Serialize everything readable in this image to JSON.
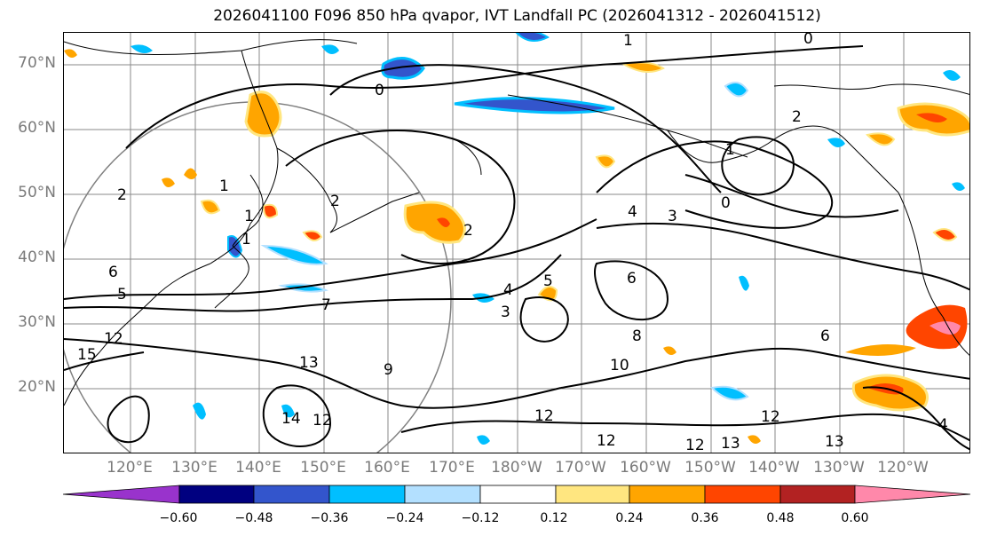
{
  "title": "2026041100 F096 850 hPa qvapor, IVT Landfall PC (2026041312 - 2026041512)",
  "lat_labels": [
    "70°N",
    "60°N",
    "50°N",
    "40°N",
    "30°N",
    "20°N"
  ],
  "lon_labels": [
    "120°E",
    "130°E",
    "140°E",
    "150°E",
    "160°E",
    "170°E",
    "180°W",
    "170°W",
    "160°W",
    "150°W",
    "140°W",
    "130°W",
    "120°W"
  ],
  "contour_labels": [
    "1",
    "0",
    "0",
    "2",
    "1",
    "0",
    "2",
    "4",
    "3",
    "1",
    "2",
    "1",
    "2",
    "1",
    "5",
    "4",
    "3",
    "5",
    "6",
    "6",
    "7",
    "8",
    "9",
    "10",
    "12",
    "13",
    "12",
    "12",
    "12",
    "13",
    "13",
    "12",
    "14",
    "4",
    "6",
    "15",
    "12"
  ],
  "colorbar": {
    "ticks": [
      "−0.60",
      "−0.48",
      "−0.36",
      "−0.24",
      "−0.12",
      "0.12",
      "0.24",
      "0.36",
      "0.48",
      "0.60"
    ],
    "colors": [
      "#9933cc",
      "#000080",
      "#3355cc",
      "#00bfff",
      "#b3e0ff",
      "#ffffff",
      "#ffe680",
      "#ffa500",
      "#ff4500",
      "#b22222",
      "#ff88aa"
    ]
  },
  "colors": {
    "coast": "#000000",
    "grid": "#8a8a8a",
    "contour": "#000000",
    "label": "#7a7a7a"
  }
}
